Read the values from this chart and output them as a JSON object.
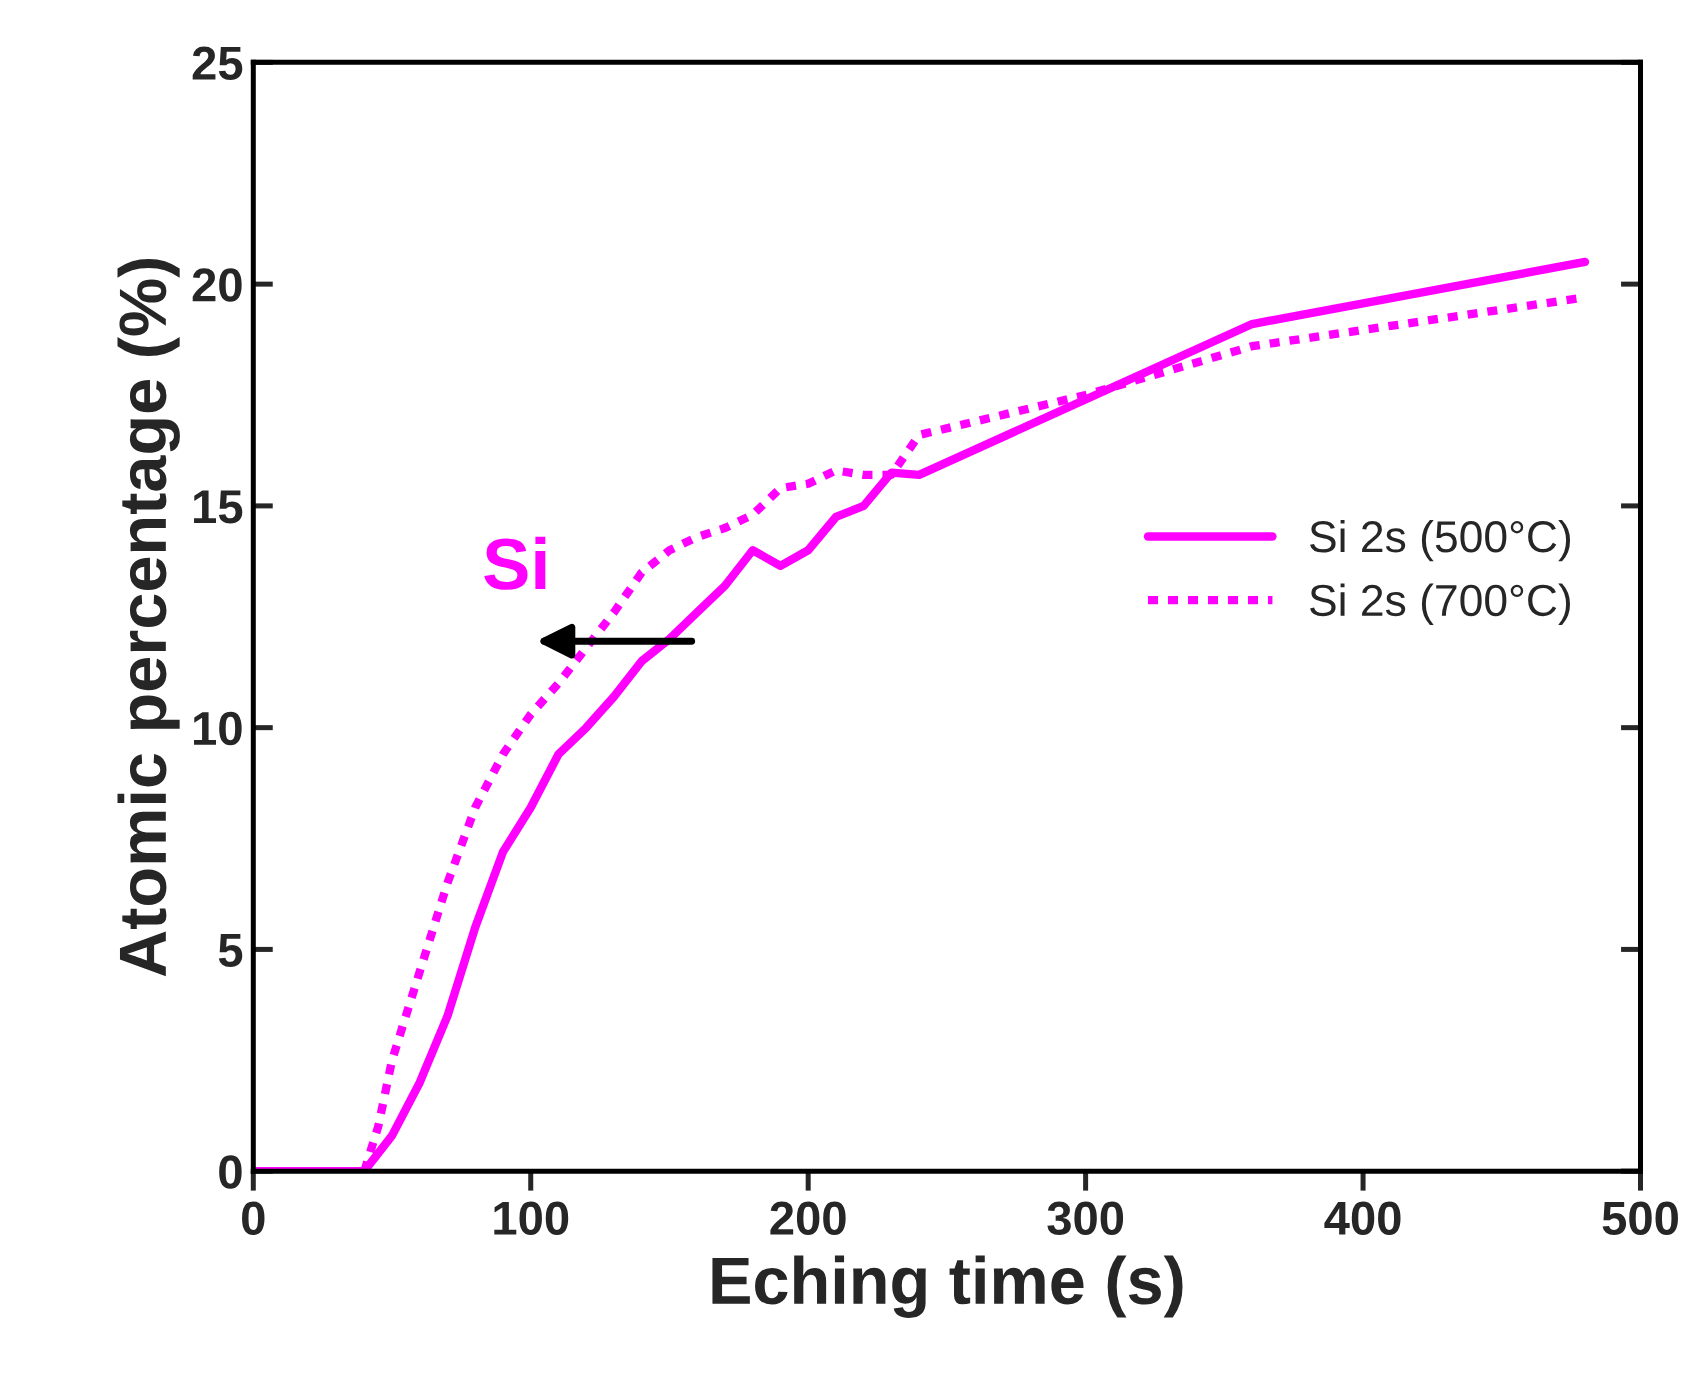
{
  "chart_data": {
    "type": "line",
    "xlabel": "Eching time (s)",
    "ylabel": "Atomic percentage (%)",
    "series": [
      {
        "name": "Si 2s (500°C)",
        "color": "#ff00ff",
        "line_style": "solid",
        "x": [
          0,
          40,
          50,
          60,
          70,
          80,
          90,
          100,
          110,
          120,
          130,
          140,
          150,
          160,
          170,
          180,
          190,
          200,
          210,
          220,
          230,
          240,
          360,
          480
        ],
        "values": [
          0,
          0,
          0.8,
          2,
          3.5,
          5.5,
          7.2,
          8.2,
          9.4,
          10.0,
          10.7,
          11.5,
          12.0,
          12.6,
          13.2,
          14.0,
          13.65,
          14.0,
          14.75,
          15.0,
          15.75,
          15.7,
          19.1,
          20.5
        ]
      },
      {
        "name": "Si 2s (700°C)",
        "color": "#ff00ff",
        "line_style": "dotted",
        "x": [
          40,
          45,
          50,
          60,
          70,
          80,
          90,
          100,
          110,
          120,
          130,
          140,
          150,
          160,
          170,
          180,
          190,
          200,
          210,
          220,
          230,
          240,
          300,
          360,
          480
        ],
        "values": [
          0,
          1,
          2.5,
          4.5,
          6.5,
          8.2,
          9.4,
          10.3,
          11,
          11.8,
          12.6,
          13.5,
          14,
          14.3,
          14.5,
          14.8,
          15.4,
          15.5,
          15.8,
          15.7,
          15.7,
          16.6,
          17.5,
          18.6,
          19.7
        ]
      }
    ],
    "annotations": [
      "Si"
    ],
    "xlim": [
      0,
      500
    ],
    "ylim": [
      0,
      25
    ],
    "xticks": [
      0,
      100,
      200,
      300,
      400,
      500
    ],
    "yticks": [
      0,
      5,
      10,
      15,
      20,
      25
    ],
    "grid": false,
    "legend": "right",
    "marker": "none"
  }
}
